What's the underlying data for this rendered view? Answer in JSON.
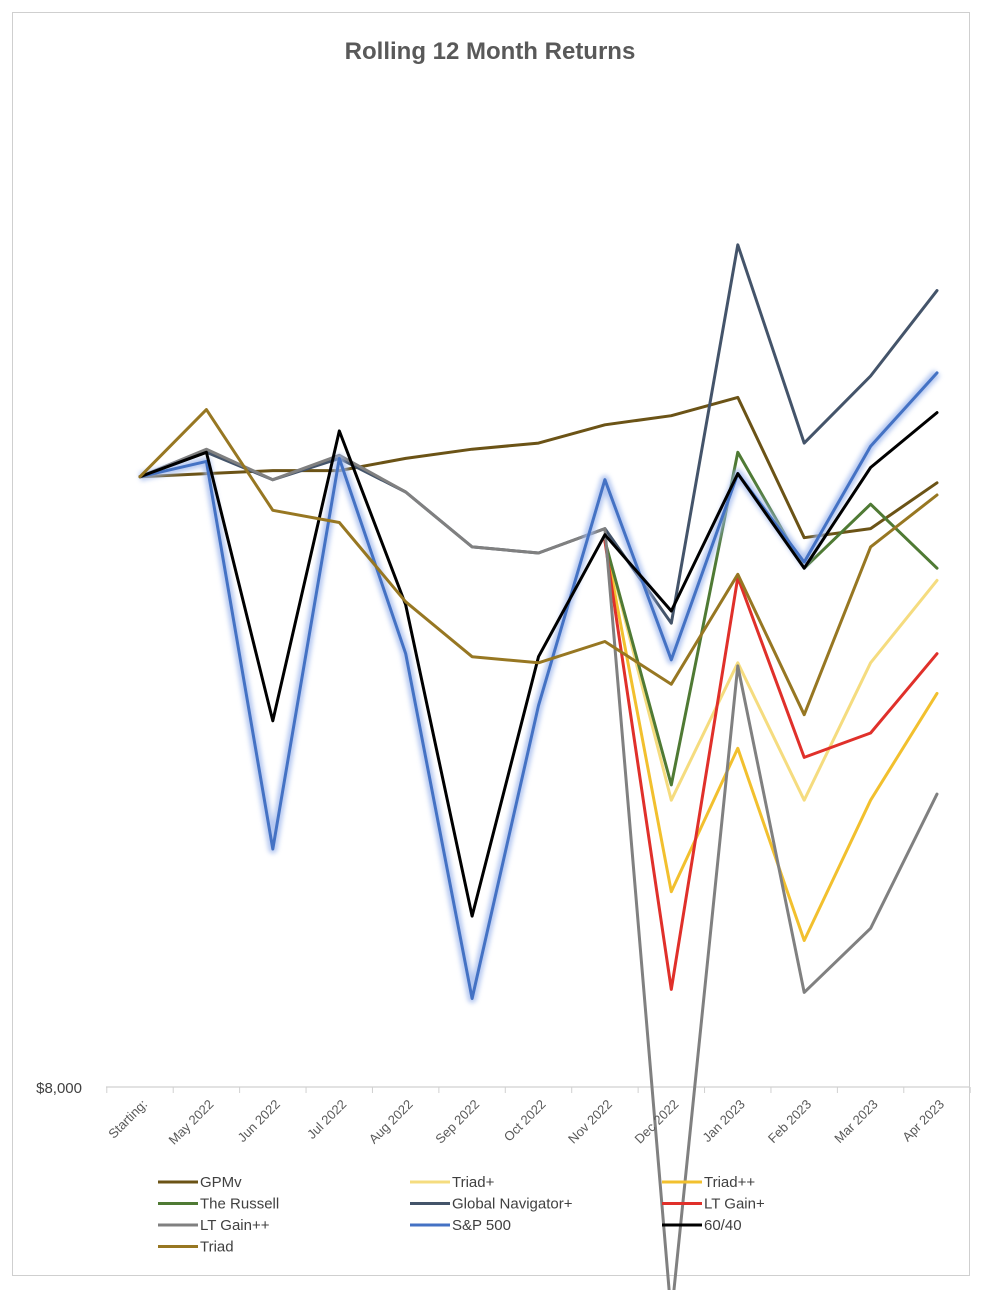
{
  "chart_data": {
    "type": "line",
    "title": "Rolling 12 Month Returns",
    "xlabel": "",
    "ylabel": "",
    "y_tick_labels": [
      {
        "value": 8000,
        "label": "$8,000"
      }
    ],
    "ylim": [
      8000,
      11300
    ],
    "grid": false,
    "legend_position": "bottom",
    "categories": [
      "Starting:",
      "May 2022",
      "Jun 2022",
      "Jul 2022",
      "Aug 2022",
      "Sep 2022",
      "Oct 2022",
      "Nov 2022",
      "Dec 2022",
      "Jan 2023",
      "Feb 2023",
      "Mar 2023",
      "Apr 2023"
    ],
    "series": [
      {
        "name": "GPMv",
        "color": "#6b5316",
        "width": 3,
        "glow": false,
        "values": [
          10000,
          10010,
          10020,
          10020,
          10060,
          10090,
          10110,
          10170,
          10200,
          10260,
          9800,
          9830,
          9980
        ]
      },
      {
        "name": "Triad+",
        "color": "#f5dc7f",
        "width": 3,
        "glow": false,
        "values": [
          null,
          null,
          null,
          null,
          null,
          null,
          null,
          9790,
          8940,
          9390,
          8940,
          9390,
          9660
        ]
      },
      {
        "name": "Triad++",
        "color": "#f2c02e",
        "width": 3,
        "glow": false,
        "values": [
          null,
          null,
          null,
          null,
          null,
          null,
          null,
          9790,
          8640,
          9110,
          8480,
          8940,
          9290
        ]
      },
      {
        "name": "The Russell",
        "color": "#4f7a34",
        "width": 3,
        "glow": false,
        "values": [
          null,
          null,
          null,
          null,
          null,
          null,
          null,
          9790,
          8990,
          10080,
          9700,
          9910,
          9700
        ]
      },
      {
        "name": "Global Navigator+",
        "color": "#44546a",
        "width": 3,
        "glow": false,
        "values": [
          10000,
          10080,
          9990,
          10060,
          9950,
          9770,
          9750,
          9830,
          9520,
          10760,
          10110,
          10330,
          10610
        ]
      },
      {
        "name": "LT Gain+",
        "color": "#e0302a",
        "width": 3,
        "glow": false,
        "values": [
          null,
          null,
          null,
          null,
          null,
          null,
          null,
          9790,
          8320,
          9670,
          9080,
          9160,
          9420
        ]
      },
      {
        "name": "LT Gain++",
        "color": "#808080",
        "width": 3,
        "glow": false,
        "values": [
          10000,
          10090,
          9990,
          10070,
          9950,
          9770,
          9750,
          9830,
          7250,
          9380,
          8310,
          8520,
          8960
        ]
      },
      {
        "name": "S&P 500",
        "color": "#4472c4",
        "width": 3,
        "glow": true,
        "values": [
          10000,
          10050,
          8780,
          10060,
          9420,
          8290,
          9250,
          9990,
          9400,
          10010,
          9720,
          10100,
          10340
        ]
      },
      {
        "name": "60/40",
        "color": "#000000",
        "width": 3,
        "glow": false,
        "values": [
          10000,
          10080,
          9200,
          10150,
          9580,
          8560,
          9410,
          9810,
          9560,
          10010,
          9700,
          10030,
          10210
        ]
      },
      {
        "name": "Triad",
        "color": "#977722",
        "width": 3,
        "glow": false,
        "values": [
          10000,
          10220,
          9890,
          9850,
          9590,
          9410,
          9390,
          9460,
          9320,
          9680,
          9220,
          9770,
          9940
        ]
      }
    ]
  }
}
